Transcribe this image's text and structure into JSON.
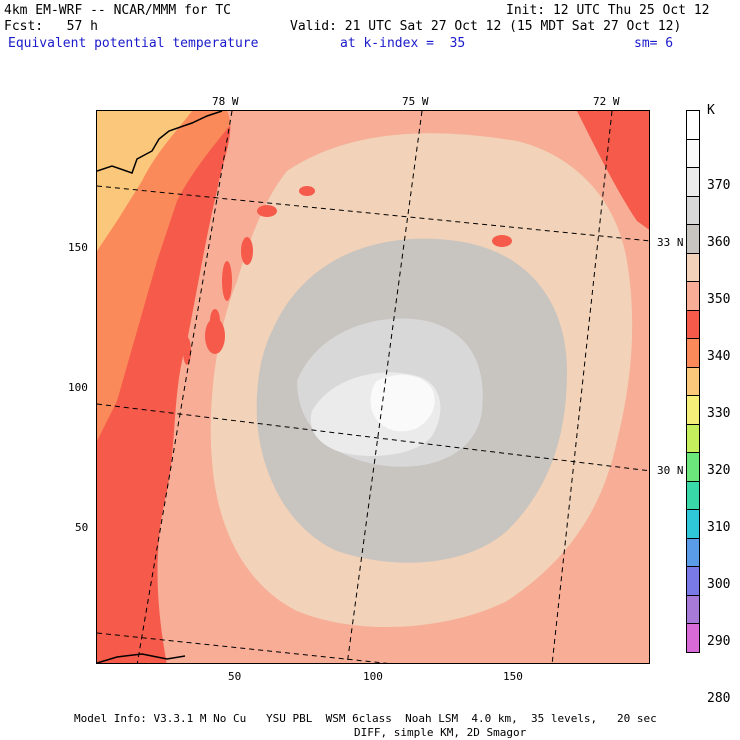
{
  "header": {
    "model": "4km EM-WRF -- NCAR/MMM for TC",
    "init": "Init: 12 UTC Thu 25 Oct 12",
    "fcst": "Fcst:   57 h",
    "valid": "Valid: 21 UTC Sat 27 Oct 12 (15 MDT Sat 27 Oct 12)",
    "field": "Equivalent potential temperature",
    "level": "at k-index =  35",
    "smooth": "sm= 6"
  },
  "map": {
    "lon_labels": [
      "78 W",
      "75 W",
      "72 W"
    ],
    "lat_labels": [
      "33 N",
      "30 N"
    ],
    "y_ticks": [
      "150",
      "100",
      "50"
    ],
    "x_ticks": [
      "50",
      "100",
      "150"
    ]
  },
  "colorbar": {
    "unit": "K",
    "labels": [
      "370",
      "360",
      "350",
      "340",
      "330",
      "320",
      "310",
      "300",
      "290",
      "280"
    ],
    "colors": [
      "#ffffff",
      "#fafafa",
      "#ebebeb",
      "#d8d8d8",
      "#c8c4c0",
      "#f2d2b8",
      "#f7ad96",
      "#f55a4a",
      "#fa8a5a",
      "#fbc77a",
      "#f5ee78",
      "#c6ef5e",
      "#6be67a",
      "#39d8a8",
      "#2ec8d8",
      "#5a9ce8",
      "#7a7ae6",
      "#a87ad8",
      "#d86ad8"
    ]
  },
  "footer": {
    "line1": "Model Info: V3.3.1 M No Cu   YSU PBL  WSM 6class  Noah LSM  4.0 km,  35 levels,   20 sec",
    "line2": "DIFF, simple KM, 2D Smagor"
  }
}
